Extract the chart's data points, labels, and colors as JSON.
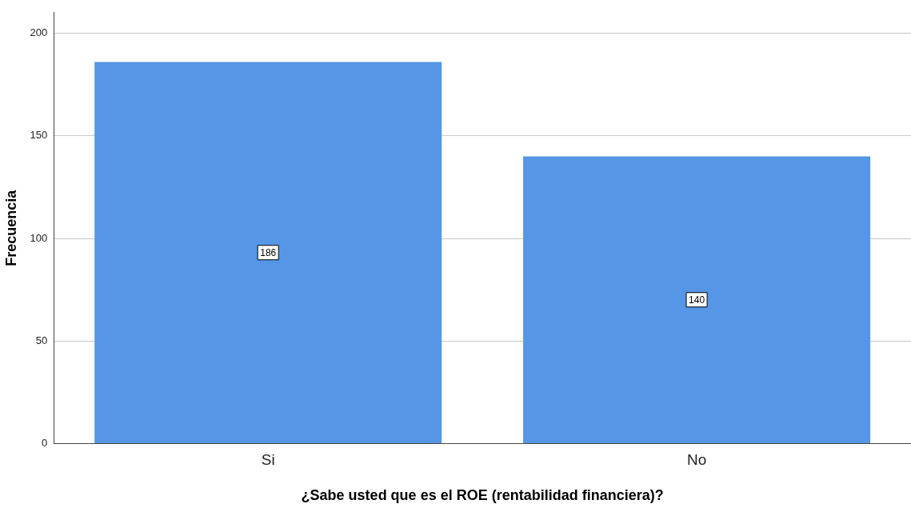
{
  "chart_data": {
    "type": "bar",
    "xlabel": "¿Sabe usted que es el ROE (rentabilidad financiera)?",
    "ylabel": "Frecuencia",
    "categories": [
      "Si",
      "No"
    ],
    "values": [
      186,
      140
    ],
    "color": "#5596e6",
    "ylim": [
      0,
      210
    ],
    "yticks": [
      0,
      50,
      100,
      150,
      200
    ],
    "grid": "y",
    "data_labels": true,
    "legend": false
  }
}
